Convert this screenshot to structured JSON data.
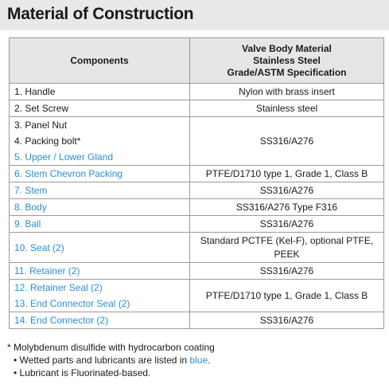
{
  "title": "Material of Construction",
  "table": {
    "header": {
      "components": "Components",
      "material_lines": [
        "Valve Body Material",
        "Stainless Steel",
        "Grade/ASTM Specification"
      ]
    },
    "rows": [
      {
        "components": [
          "1. Handle"
        ],
        "wetted": [
          false
        ],
        "material": [
          "Nylon with brass insert"
        ]
      },
      {
        "components": [
          "2. Set Screw"
        ],
        "wetted": [
          false
        ],
        "material": [
          "Stainless steel"
        ]
      },
      {
        "components": [
          "3. Panel Nut",
          "4. Packing bolt*",
          "5. Upper / Lower Gland"
        ],
        "wetted": [
          false,
          false,
          true
        ],
        "material": [
          "SS316/A276"
        ]
      },
      {
        "components": [
          "6. Stem Chevron Packing"
        ],
        "wetted": [
          true
        ],
        "material": [
          "PTFE/D1710 type 1, Grade 1, Class B"
        ]
      },
      {
        "components": [
          "7. Stem"
        ],
        "wetted": [
          true
        ],
        "material": [
          "SS316/A276"
        ]
      },
      {
        "components": [
          "8. Body"
        ],
        "wetted": [
          true
        ],
        "material": [
          "SS316/A276 Type F316"
        ]
      },
      {
        "components": [
          "9. Ball"
        ],
        "wetted": [
          true
        ],
        "material": [
          "SS316/A276"
        ]
      },
      {
        "components": [
          "10. Seat (2)"
        ],
        "wetted": [
          true
        ],
        "material": [
          "Standard PCTFE (Kel-F), optional PTFE,",
          "PEEK"
        ]
      },
      {
        "components": [
          "11. Retainer (2)"
        ],
        "wetted": [
          true
        ],
        "material": [
          "SS316/A276"
        ]
      },
      {
        "components": [
          "12. Retainer Seal (2)",
          "13. End Connector Seal (2)"
        ],
        "wetted": [
          true,
          true
        ],
        "material": [
          "PTFE/D1710 type 1, Grade 1, Class B"
        ]
      },
      {
        "components": [
          "14. End Connector (2)"
        ],
        "wetted": [
          true
        ],
        "material": [
          "SS316/A276"
        ]
      }
    ]
  },
  "notes": {
    "line1": "* Molybdenum disulfide with hydrocarbon coating",
    "line2_prefix": "• Wetted parts and lubricants are listed in ",
    "line2_blue": "blue",
    "line2_suffix": ".",
    "line3": "• Lubricant is Fluorinated-based."
  },
  "colors": {
    "wetted_text": "#2a8fd3",
    "header_bg": "#e6e6e6",
    "title_bg": "#e9e9e9",
    "border": "#9a9a9a"
  }
}
